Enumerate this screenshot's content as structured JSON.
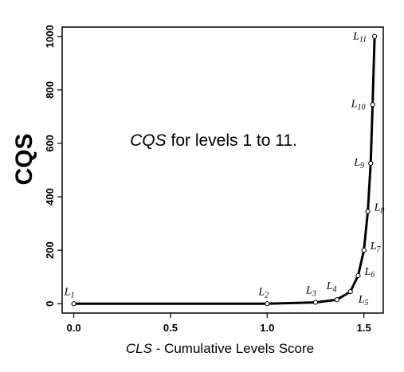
{
  "chart_data": {
    "type": "line",
    "title": "",
    "xlabel": {
      "italic": "CLS",
      "rest": " - Cumulative  Levels Score"
    },
    "ylabel": "CQS",
    "annotation": {
      "italic": "CQS",
      "rest": " for levels 1 to 11."
    },
    "xlim": [
      -0.06,
      1.6
    ],
    "ylim": [
      -35,
      1035
    ],
    "x_ticks": [
      {
        "v": 0.0,
        "label": "0.0"
      },
      {
        "v": 0.5,
        "label": "0.5"
      },
      {
        "v": 1.0,
        "label": "1.0"
      },
      {
        "v": 1.5,
        "label": "1.5"
      }
    ],
    "y_ticks": [
      {
        "v": 0,
        "label": "0"
      },
      {
        "v": 200,
        "label": "200"
      },
      {
        "v": 400,
        "label": "400"
      },
      {
        "v": 600,
        "label": "600"
      },
      {
        "v": 800,
        "label": "800"
      },
      {
        "v": 1000,
        "label": "1000"
      }
    ],
    "grid": false,
    "legend": "none",
    "series": [
      {
        "points": [
          {
            "label": "L",
            "sub": "1",
            "x": 0.0,
            "y": 0
          },
          {
            "label": "L",
            "sub": "2",
            "x": 1.0,
            "y": 0
          },
          {
            "label": "L",
            "sub": "3",
            "x": 1.25,
            "y": 5
          },
          {
            "label": "L",
            "sub": "4",
            "x": 1.36,
            "y": 15
          },
          {
            "label": "L",
            "sub": "5",
            "x": 1.43,
            "y": 45
          },
          {
            "label": "L",
            "sub": "6",
            "x": 1.47,
            "y": 105
          },
          {
            "label": "L",
            "sub": "7",
            "x": 1.5,
            "y": 200
          },
          {
            "label": "L",
            "sub": "8",
            "x": 1.52,
            "y": 345
          },
          {
            "label": "L",
            "sub": "9",
            "x": 1.535,
            "y": 525
          },
          {
            "label": "L",
            "sub": "10",
            "x": 1.545,
            "y": 745
          },
          {
            "label": "L",
            "sub": "11",
            "x": 1.555,
            "y": 1000
          }
        ]
      }
    ]
  }
}
